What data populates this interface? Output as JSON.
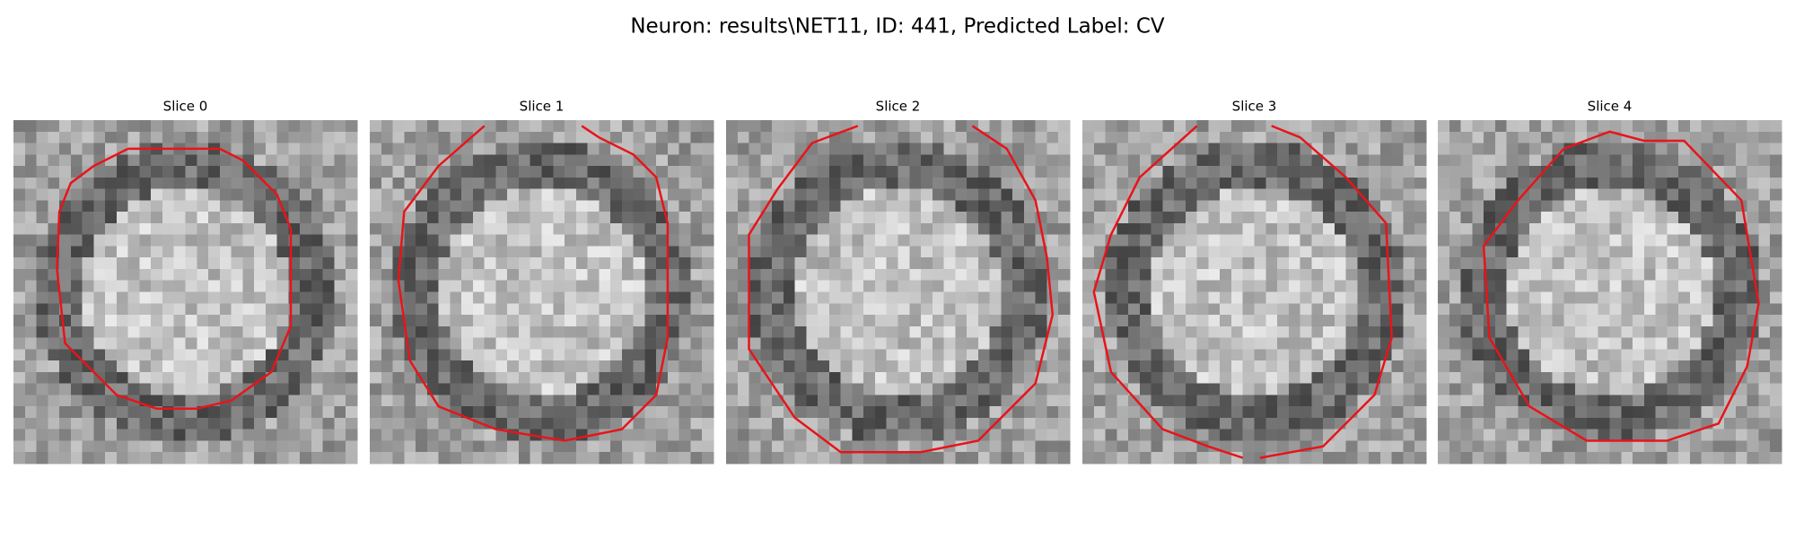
{
  "title": "Neuron: results\\NET11, ID: 441, Predicted Label: CV",
  "panels": [
    {
      "title": "Slice 0"
    },
    {
      "title": "Slice 1"
    },
    {
      "title": "Slice 2"
    },
    {
      "title": "Slice 3"
    },
    {
      "title": "Slice 4"
    }
  ]
}
